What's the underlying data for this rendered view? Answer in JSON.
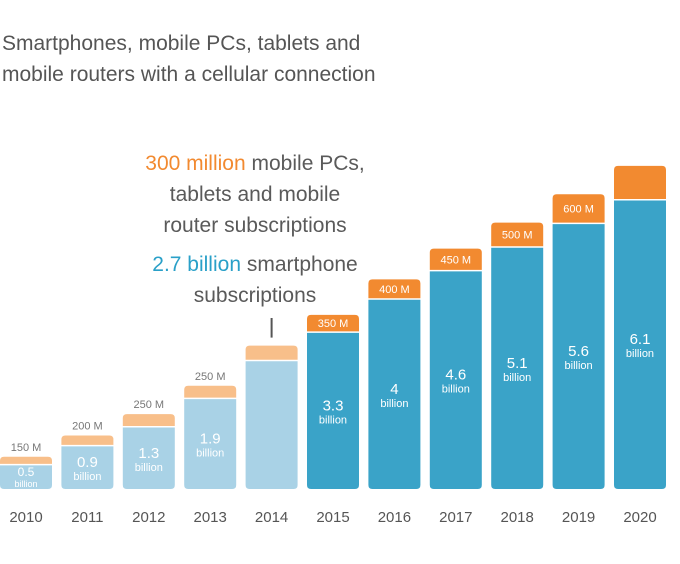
{
  "title": {
    "line1": "Smartphones, mobile PCs, tablets and",
    "line2": "mobile routers with a cellular connection"
  },
  "annotation": {
    "line1_highlight": "300 million",
    "line1_rest": " mobile PCs,",
    "line2": "tablets and mobile",
    "line3": "router subscriptions",
    "line4_highlight": "2.7 billion",
    "line4_rest": " smartphone",
    "line5": "subscriptions"
  },
  "colors": {
    "historic_smartphone": "#a9d2e6",
    "historic_other": "#f8bf8a",
    "forecast_smartphone": "#3aa3c8",
    "forecast_other": "#f28a30",
    "year_label": "#555555"
  },
  "chart_data": {
    "type": "bar",
    "stacked": true,
    "categories": [
      "2010",
      "2011",
      "2012",
      "2013",
      "2014",
      "2015",
      "2016",
      "2017",
      "2018",
      "2019",
      "2020"
    ],
    "series": [
      {
        "key": "smartphone",
        "values": [
          0.5,
          0.9,
          1.3,
          1.9,
          2.7,
          3.3,
          4,
          4.6,
          5.1,
          5.6,
          6.1
        ],
        "value_labels": [
          "0.5",
          "0.9",
          "1.3",
          "1.9",
          "",
          "3.3",
          "4",
          "4.6",
          "5.1",
          "5.6",
          "6.1"
        ],
        "unit_label": "billion"
      },
      {
        "key": "other",
        "values": [
          0.15,
          0.2,
          0.25,
          0.25,
          0.3,
          0.35,
          0.4,
          0.45,
          0.5,
          0.6,
          0.7
        ],
        "value_labels": [
          "150 M",
          "200 M",
          "250 M",
          "250 M",
          "",
          "350 M",
          "400 M",
          "450 M",
          "500 M",
          "600 M",
          ""
        ]
      }
    ],
    "forecast_from": "2015",
    "annotated_category": "2014",
    "ylim": [
      0,
      6.8
    ],
    "grid": false,
    "legend": "none"
  }
}
